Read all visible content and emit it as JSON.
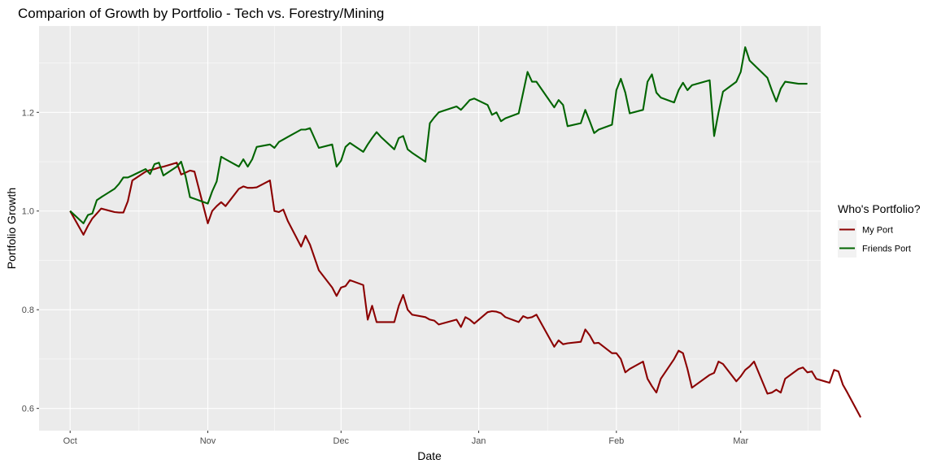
{
  "chart_data": {
    "type": "line",
    "title": "Comparion of Growth by Portfolio - Tech vs. Forestry/Mining",
    "xlabel": "Date",
    "ylabel": "Portfolio Growth",
    "x_range": [
      "2021-09-24",
      "2022-03-19"
    ],
    "ylim": [
      0.555,
      1.375
    ],
    "x_ticks": [
      {
        "date": "2021-10-01",
        "label": "Oct"
      },
      {
        "date": "2021-11-01",
        "label": "Nov"
      },
      {
        "date": "2021-12-01",
        "label": "Dec"
      },
      {
        "date": "2022-01-01",
        "label": "Jan"
      },
      {
        "date": "2022-02-01",
        "label": "Feb"
      },
      {
        "date": "2022-03-01",
        "label": "Mar"
      }
    ],
    "y_ticks": [
      0.6,
      0.8,
      1.0,
      1.2
    ],
    "grid": true,
    "legend": {
      "title": "Who's Portfolio?",
      "position": "right"
    },
    "series": [
      {
        "name": "My Port",
        "color": "#8b0000",
        "points": [
          [
            "2021-10-01",
            1.0
          ],
          [
            "2021-10-04",
            0.952
          ],
          [
            "2021-10-05",
            0.97
          ],
          [
            "2021-10-06",
            0.985
          ],
          [
            "2021-10-07",
            0.995
          ],
          [
            "2021-10-08",
            1.005
          ],
          [
            "2021-10-11",
            0.998
          ],
          [
            "2021-10-12",
            0.997
          ],
          [
            "2021-10-13",
            0.997
          ],
          [
            "2021-10-14",
            1.02
          ],
          [
            "2021-10-15",
            1.062
          ],
          [
            "2021-10-18",
            1.08
          ],
          [
            "2021-10-19",
            1.083
          ],
          [
            "2021-10-20",
            1.085
          ],
          [
            "2021-10-21",
            1.088
          ],
          [
            "2021-10-22",
            1.09
          ],
          [
            "2021-10-25",
            1.098
          ],
          [
            "2021-10-26",
            1.074
          ],
          [
            "2021-10-27",
            1.078
          ],
          [
            "2021-10-28",
            1.082
          ],
          [
            "2021-10-29",
            1.08
          ],
          [
            "2021-11-01",
            0.975
          ],
          [
            "2021-11-02",
            1.0
          ],
          [
            "2021-11-03",
            1.01
          ],
          [
            "2021-11-04",
            1.018
          ],
          [
            "2021-11-05",
            1.01
          ],
          [
            "2021-11-08",
            1.045
          ],
          [
            "2021-11-09",
            1.05
          ],
          [
            "2021-11-10",
            1.047
          ],
          [
            "2021-11-11",
            1.047
          ],
          [
            "2021-11-12",
            1.048
          ],
          [
            "2021-11-15",
            1.062
          ],
          [
            "2021-11-16",
            1.0
          ],
          [
            "2021-11-17",
            0.998
          ],
          [
            "2021-11-18",
            1.003
          ],
          [
            "2021-11-19",
            0.98
          ],
          [
            "2021-11-22",
            0.928
          ],
          [
            "2021-11-23",
            0.95
          ],
          [
            "2021-11-24",
            0.932
          ],
          [
            "2021-11-26",
            0.88
          ],
          [
            "2021-11-29",
            0.845
          ],
          [
            "2021-11-30",
            0.828
          ],
          [
            "2021-12-01",
            0.845
          ],
          [
            "2021-12-02",
            0.848
          ],
          [
            "2021-12-03",
            0.86
          ],
          [
            "2021-12-06",
            0.85
          ],
          [
            "2021-12-07",
            0.78
          ],
          [
            "2021-12-08",
            0.808
          ],
          [
            "2021-12-09",
            0.775
          ],
          [
            "2021-12-10",
            0.775
          ],
          [
            "2021-12-13",
            0.775
          ],
          [
            "2021-12-14",
            0.808
          ],
          [
            "2021-12-15",
            0.83
          ],
          [
            "2021-12-16",
            0.8
          ],
          [
            "2021-12-17",
            0.79
          ],
          [
            "2021-12-20",
            0.785
          ],
          [
            "2021-12-21",
            0.78
          ],
          [
            "2021-12-22",
            0.778
          ],
          [
            "2021-12-23",
            0.77
          ],
          [
            "2021-12-27",
            0.78
          ],
          [
            "2021-12-28",
            0.765
          ],
          [
            "2021-12-29",
            0.785
          ],
          [
            "2021-12-30",
            0.78
          ],
          [
            "2021-12-31",
            0.772
          ],
          [
            "2022-01-03",
            0.795
          ],
          [
            "2022-01-04",
            0.797
          ],
          [
            "2022-01-05",
            0.796
          ],
          [
            "2022-01-06",
            0.793
          ],
          [
            "2022-01-07",
            0.785
          ],
          [
            "2022-01-10",
            0.775
          ],
          [
            "2022-01-11",
            0.787
          ],
          [
            "2022-01-12",
            0.783
          ],
          [
            "2022-01-13",
            0.785
          ],
          [
            "2022-01-14",
            0.79
          ],
          [
            "2022-01-18",
            0.725
          ],
          [
            "2022-01-19",
            0.738
          ],
          [
            "2022-01-20",
            0.73
          ],
          [
            "2022-01-21",
            0.732
          ],
          [
            "2022-01-24",
            0.735
          ],
          [
            "2022-01-25",
            0.76
          ],
          [
            "2022-01-26",
            0.748
          ],
          [
            "2022-01-27",
            0.732
          ],
          [
            "2022-01-28",
            0.733
          ],
          [
            "2022-01-31",
            0.712
          ],
          [
            "2022-02-01",
            0.712
          ],
          [
            "2022-02-02",
            0.7
          ],
          [
            "2022-02-03",
            0.673
          ],
          [
            "2022-02-04",
            0.68
          ],
          [
            "2022-02-07",
            0.695
          ],
          [
            "2022-02-08",
            0.66
          ],
          [
            "2022-02-09",
            0.645
          ],
          [
            "2022-02-10",
            0.632
          ],
          [
            "2022-02-11",
            0.66
          ],
          [
            "2022-02-14",
            0.7
          ],
          [
            "2022-02-15",
            0.717
          ],
          [
            "2022-02-16",
            0.712
          ],
          [
            "2022-02-17",
            0.68
          ],
          [
            "2022-02-18",
            0.642
          ],
          [
            "2022-02-22",
            0.668
          ],
          [
            "2022-02-23",
            0.672
          ],
          [
            "2022-02-24",
            0.695
          ],
          [
            "2022-02-25",
            0.69
          ],
          [
            "2022-02-28",
            0.655
          ],
          [
            "2022-03-01",
            0.665
          ],
          [
            "2022-03-02",
            0.678
          ],
          [
            "2022-03-03",
            0.685
          ],
          [
            "2022-03-04",
            0.695
          ],
          [
            "2022-03-07",
            0.63
          ],
          [
            "2022-03-08",
            0.632
          ],
          [
            "2022-03-09",
            0.638
          ],
          [
            "2022-03-10",
            0.632
          ],
          [
            "2022-03-11",
            0.66
          ],
          [
            "2022-03-14",
            0.68
          ],
          [
            "2022-03-15",
            0.683
          ],
          [
            "2022-03-16",
            0.673
          ],
          [
            "2022-03-17",
            0.675
          ],
          [
            "2022-03-18",
            0.66
          ],
          [
            "2022-03-21",
            0.652
          ],
          [
            "2022-03-22",
            0.678
          ],
          [
            "2022-03-23",
            0.675
          ],
          [
            "2022-03-24",
            0.648
          ],
          [
            "2022-03-25",
            0.632
          ],
          [
            "2022-03-28",
            0.582
          ]
        ]
      },
      {
        "name": "Friends Port",
        "color": "#006400",
        "points": [
          [
            "2021-10-01",
            1.0
          ],
          [
            "2021-10-04",
            0.975
          ],
          [
            "2021-10-05",
            0.992
          ],
          [
            "2021-10-06",
            0.995
          ],
          [
            "2021-10-07",
            1.022
          ],
          [
            "2021-10-08",
            1.028
          ],
          [
            "2021-10-11",
            1.045
          ],
          [
            "2021-10-12",
            1.055
          ],
          [
            "2021-10-13",
            1.068
          ],
          [
            "2021-10-14",
            1.068
          ],
          [
            "2021-10-15",
            1.072
          ],
          [
            "2021-10-18",
            1.085
          ],
          [
            "2021-10-19",
            1.075
          ],
          [
            "2021-10-20",
            1.095
          ],
          [
            "2021-10-21",
            1.098
          ],
          [
            "2021-10-22",
            1.072
          ],
          [
            "2021-10-25",
            1.09
          ],
          [
            "2021-10-26",
            1.1
          ],
          [
            "2021-10-27",
            1.07
          ],
          [
            "2021-10-28",
            1.028
          ],
          [
            "2021-10-29",
            1.025
          ],
          [
            "2021-11-01",
            1.015
          ],
          [
            "2021-11-02",
            1.04
          ],
          [
            "2021-11-03",
            1.06
          ],
          [
            "2021-11-04",
            1.11
          ],
          [
            "2021-11-05",
            1.105
          ],
          [
            "2021-11-08",
            1.09
          ],
          [
            "2021-11-09",
            1.105
          ],
          [
            "2021-11-10",
            1.09
          ],
          [
            "2021-11-11",
            1.105
          ],
          [
            "2021-11-12",
            1.13
          ],
          [
            "2021-11-15",
            1.135
          ],
          [
            "2021-11-16",
            1.128
          ],
          [
            "2021-11-17",
            1.14
          ],
          [
            "2021-11-18",
            1.145
          ],
          [
            "2021-11-19",
            1.15
          ],
          [
            "2021-11-22",
            1.165
          ],
          [
            "2021-11-23",
            1.165
          ],
          [
            "2021-11-24",
            1.168
          ],
          [
            "2021-11-26",
            1.128
          ],
          [
            "2021-11-29",
            1.135
          ],
          [
            "2021-11-30",
            1.09
          ],
          [
            "2021-12-01",
            1.102
          ],
          [
            "2021-12-02",
            1.13
          ],
          [
            "2021-12-03",
            1.138
          ],
          [
            "2021-12-06",
            1.12
          ],
          [
            "2021-12-07",
            1.135
          ],
          [
            "2021-12-08",
            1.148
          ],
          [
            "2021-12-09",
            1.16
          ],
          [
            "2021-12-10",
            1.15
          ],
          [
            "2021-12-13",
            1.125
          ],
          [
            "2021-12-14",
            1.148
          ],
          [
            "2021-12-15",
            1.152
          ],
          [
            "2021-12-16",
            1.125
          ],
          [
            "2021-12-17",
            1.118
          ],
          [
            "2021-12-20",
            1.1
          ],
          [
            "2021-12-21",
            1.178
          ],
          [
            "2021-12-22",
            1.19
          ],
          [
            "2021-12-23",
            1.2
          ],
          [
            "2021-12-27",
            1.212
          ],
          [
            "2021-12-28",
            1.205
          ],
          [
            "2021-12-29",
            1.215
          ],
          [
            "2021-12-30",
            1.225
          ],
          [
            "2021-12-31",
            1.228
          ],
          [
            "2022-01-03",
            1.215
          ],
          [
            "2022-01-04",
            1.195
          ],
          [
            "2022-01-05",
            1.2
          ],
          [
            "2022-01-06",
            1.182
          ],
          [
            "2022-01-07",
            1.188
          ],
          [
            "2022-01-10",
            1.198
          ],
          [
            "2022-01-11",
            1.24
          ],
          [
            "2022-01-12",
            1.282
          ],
          [
            "2022-01-13",
            1.262
          ],
          [
            "2022-01-14",
            1.262
          ],
          [
            "2022-01-18",
            1.21
          ],
          [
            "2022-01-19",
            1.225
          ],
          [
            "2022-01-20",
            1.215
          ],
          [
            "2022-01-21",
            1.172
          ],
          [
            "2022-01-24",
            1.178
          ],
          [
            "2022-01-25",
            1.205
          ],
          [
            "2022-01-26",
            1.182
          ],
          [
            "2022-01-27",
            1.158
          ],
          [
            "2022-01-28",
            1.165
          ],
          [
            "2022-01-31",
            1.175
          ],
          [
            "2022-02-01",
            1.245
          ],
          [
            "2022-02-02",
            1.268
          ],
          [
            "2022-02-03",
            1.24
          ],
          [
            "2022-02-04",
            1.198
          ],
          [
            "2022-02-07",
            1.205
          ],
          [
            "2022-02-08",
            1.262
          ],
          [
            "2022-02-09",
            1.277
          ],
          [
            "2022-02-10",
            1.24
          ],
          [
            "2022-02-11",
            1.23
          ],
          [
            "2022-02-14",
            1.22
          ],
          [
            "2022-02-15",
            1.245
          ],
          [
            "2022-02-16",
            1.26
          ],
          [
            "2022-02-17",
            1.245
          ],
          [
            "2022-02-18",
            1.255
          ],
          [
            "2022-02-22",
            1.265
          ],
          [
            "2022-02-23",
            1.152
          ],
          [
            "2022-02-24",
            1.2
          ],
          [
            "2022-02-25",
            1.242
          ],
          [
            "2022-02-28",
            1.262
          ],
          [
            "2022-03-01",
            1.282
          ],
          [
            "2022-03-02",
            1.332
          ],
          [
            "2022-03-03",
            1.305
          ],
          [
            "2022-03-07",
            1.27
          ],
          [
            "2022-03-08",
            1.245
          ],
          [
            "2022-03-09",
            1.222
          ],
          [
            "2022-03-10",
            1.248
          ],
          [
            "2022-03-11",
            1.262
          ],
          [
            "2022-03-14",
            1.258
          ],
          [
            "2022-03-15",
            1.258
          ],
          [
            "2022-03-16",
            1.258
          ]
        ]
      }
    ]
  }
}
